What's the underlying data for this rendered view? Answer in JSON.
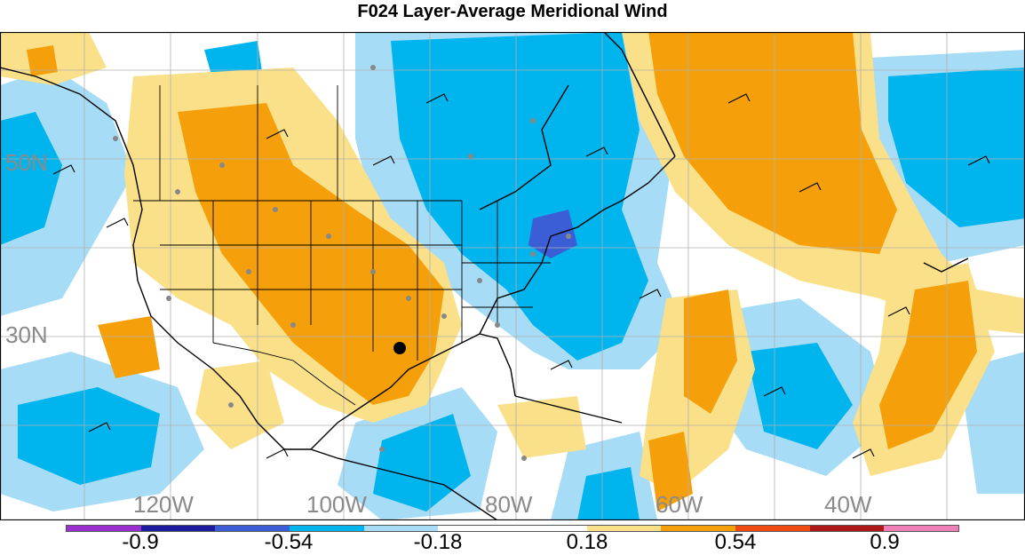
{
  "title": "F024 Layer-Average Meridional Wind",
  "lat_labels": [
    "50N",
    "30N"
  ],
  "lon_labels": [
    "120W",
    "100W",
    "80W",
    "60W",
    "40W"
  ],
  "colorbar": {
    "colors": [
      "#9b30d0",
      "#1c1ca0",
      "#3b5ed6",
      "#00b4ee",
      "#a6dcf5",
      "#ffffff",
      "#ffffff",
      "#fbe08a",
      "#f5a00a",
      "#f04a10",
      "#b01818",
      "#f080b8"
    ],
    "labels": [
      "-0.9",
      "-0.54",
      "-0.18",
      "0.18",
      "0.54",
      "0.9"
    ]
  },
  "map_colors": {
    "positive_light": "#fbe08a",
    "positive_strong": "#f5a00a",
    "negative_light": "#a6dcf5",
    "negative_strong": "#00b4ee",
    "negative_deep": "#3b5ed6"
  }
}
